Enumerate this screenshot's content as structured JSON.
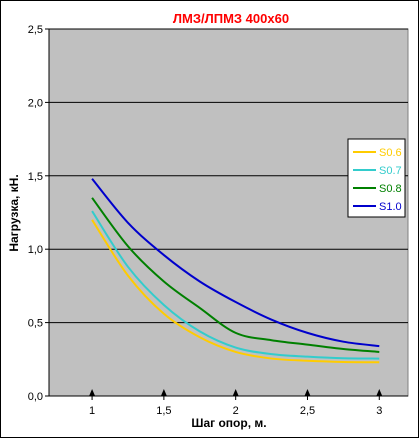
{
  "chart_data": {
    "type": "line",
    "title": "ЛМЗ/ЛПМЗ 400х60",
    "xlabel": "Шаг опор, м.",
    "ylabel": "Нагрузка, кН.",
    "xlim": [
      0.7,
      3.2
    ],
    "ylim": [
      0,
      2.5
    ],
    "xticks": [
      1,
      1.5,
      2,
      2.5,
      3
    ],
    "xtick_labels": [
      "1",
      "1,5",
      "2",
      "2,5",
      "3"
    ],
    "yticks": [
      0,
      0.5,
      1.0,
      1.5,
      2.0,
      2.5
    ],
    "ytick_labels": [
      "0,0",
      "0,5",
      "1,0",
      "1,5",
      "2,0",
      "2,5"
    ],
    "grid": "horizontal major",
    "legend_position": "right",
    "x": [
      1.0,
      1.25,
      1.5,
      1.75,
      2.0,
      2.25,
      2.5,
      2.75,
      3.0
    ],
    "series": [
      {
        "name": "S0.6",
        "color": "#ffcc00",
        "values": [
          1.2,
          0.82,
          0.56,
          0.4,
          0.3,
          0.255,
          0.24,
          0.232,
          0.23
        ]
      },
      {
        "name": "S0.7",
        "color": "#33cccc",
        "values": [
          1.26,
          0.88,
          0.62,
          0.44,
          0.33,
          0.285,
          0.268,
          0.257,
          0.255
        ]
      },
      {
        "name": "S0.8",
        "color": "#008000",
        "values": [
          1.35,
          1.02,
          0.78,
          0.6,
          0.43,
          0.38,
          0.35,
          0.32,
          0.3
        ]
      },
      {
        "name": "S1.0",
        "color": "#0000cc",
        "values": [
          1.48,
          1.18,
          0.96,
          0.78,
          0.64,
          0.52,
          0.43,
          0.37,
          0.34
        ]
      }
    ],
    "colors": {
      "title": "#ff0000",
      "plot_background": "#c0c0c0",
      "grid": "#000000"
    }
  }
}
